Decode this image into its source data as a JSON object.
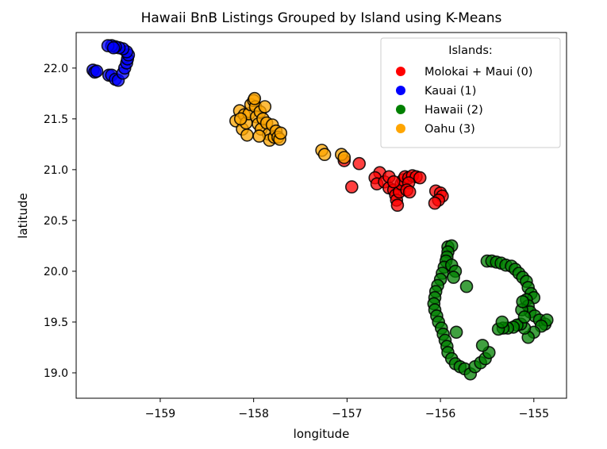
{
  "chart_data": {
    "type": "scatter",
    "title": "Hawaii BnB Listings Grouped by Island using K-Means",
    "xlabel": "longitude",
    "ylabel": "latitude",
    "xlim": [
      -159.9,
      -154.65
    ],
    "ylim": [
      18.75,
      22.35
    ],
    "xticks": [
      -159,
      -158,
      -157,
      -156,
      -155
    ],
    "xtick_labels": [
      "−159",
      "−158",
      "−157",
      "−156",
      "−155"
    ],
    "yticks": [
      19.0,
      19.5,
      20.0,
      20.5,
      21.0,
      21.5,
      22.0
    ],
    "ytick_labels": [
      "19.0",
      "19.5",
      "20.0",
      "20.5",
      "21.0",
      "21.5",
      "22.0"
    ],
    "grid": false,
    "legend": {
      "title": "Islands:",
      "placement": "top-right"
    },
    "series": [
      {
        "name": "Molokai + Maui (0)",
        "color": "#ff0000",
        "points": [
          [
            -157.03,
            21.09
          ],
          [
            -156.87,
            21.06
          ],
          [
            -156.95,
            20.83
          ],
          [
            -156.65,
            20.97
          ],
          [
            -156.7,
            20.92
          ],
          [
            -156.68,
            20.86
          ],
          [
            -156.6,
            20.88
          ],
          [
            -156.55,
            20.82
          ],
          [
            -156.5,
            20.8
          ],
          [
            -156.48,
            20.75
          ],
          [
            -156.47,
            20.7
          ],
          [
            -156.46,
            20.65
          ],
          [
            -156.44,
            20.78
          ],
          [
            -156.42,
            20.86
          ],
          [
            -156.4,
            20.9
          ],
          [
            -156.38,
            20.93
          ],
          [
            -156.34,
            20.92
          ],
          [
            -156.3,
            20.94
          ],
          [
            -156.26,
            20.93
          ],
          [
            -156.22,
            20.92
          ],
          [
            -156.34,
            20.87
          ],
          [
            -156.36,
            20.8
          ],
          [
            -156.33,
            20.78
          ],
          [
            -156.05,
            20.79
          ],
          [
            -156.0,
            20.77
          ],
          [
            -155.98,
            20.74
          ],
          [
            -156.02,
            20.7
          ],
          [
            -156.06,
            20.67
          ],
          [
            -156.55,
            20.93
          ],
          [
            -156.5,
            20.88
          ]
        ]
      },
      {
        "name": "Kauai (1)",
        "color": "#0000ff",
        "points": [
          [
            -159.72,
            21.98
          ],
          [
            -159.7,
            21.96
          ],
          [
            -159.68,
            21.97
          ],
          [
            -159.55,
            21.93
          ],
          [
            -159.52,
            21.93
          ],
          [
            -159.48,
            21.89
          ],
          [
            -159.45,
            21.88
          ],
          [
            -159.4,
            21.95
          ],
          [
            -159.38,
            22.0
          ],
          [
            -159.36,
            22.05
          ],
          [
            -159.35,
            22.09
          ],
          [
            -159.34,
            22.13
          ],
          [
            -159.36,
            22.16
          ],
          [
            -159.4,
            22.19
          ],
          [
            -159.44,
            22.2
          ],
          [
            -159.48,
            22.21
          ],
          [
            -159.52,
            22.22
          ],
          [
            -159.56,
            22.22
          ],
          [
            -159.5,
            22.2
          ]
        ]
      },
      {
        "name": "Hawaii (2)",
        "color": "#008000",
        "points": [
          [
            -155.92,
            20.24
          ],
          [
            -155.88,
            20.25
          ],
          [
            -155.92,
            20.19
          ],
          [
            -155.93,
            20.14
          ],
          [
            -155.94,
            20.1
          ],
          [
            -155.96,
            20.04
          ],
          [
            -155.98,
            19.98
          ],
          [
            -156.0,
            19.92
          ],
          [
            -156.03,
            19.86
          ],
          [
            -156.05,
            19.8
          ],
          [
            -156.06,
            19.74
          ],
          [
            -156.07,
            19.68
          ],
          [
            -156.06,
            19.62
          ],
          [
            -156.04,
            19.56
          ],
          [
            -156.02,
            19.5
          ],
          [
            -155.99,
            19.44
          ],
          [
            -155.97,
            19.38
          ],
          [
            -155.95,
            19.32
          ],
          [
            -155.93,
            19.26
          ],
          [
            -155.92,
            19.2
          ],
          [
            -155.88,
            19.14
          ],
          [
            -155.84,
            19.09
          ],
          [
            -155.79,
            19.06
          ],
          [
            -155.74,
            19.04
          ],
          [
            -155.68,
            18.99
          ],
          [
            -155.63,
            19.06
          ],
          [
            -155.57,
            19.1
          ],
          [
            -155.52,
            19.14
          ],
          [
            -155.48,
            19.2
          ],
          [
            -155.55,
            19.27
          ],
          [
            -155.88,
            20.06
          ],
          [
            -155.84,
            20.0
          ],
          [
            -155.86,
            19.94
          ],
          [
            -155.72,
            19.85
          ],
          [
            -155.83,
            19.4
          ],
          [
            -155.5,
            20.1
          ],
          [
            -155.45,
            20.1
          ],
          [
            -155.4,
            20.09
          ],
          [
            -155.35,
            20.08
          ],
          [
            -155.3,
            20.06
          ],
          [
            -155.24,
            20.05
          ],
          [
            -155.2,
            20.02
          ],
          [
            -155.16,
            19.98
          ],
          [
            -155.12,
            19.94
          ],
          [
            -155.08,
            19.9
          ],
          [
            -155.06,
            19.84
          ],
          [
            -155.03,
            19.78
          ],
          [
            -155.0,
            19.74
          ],
          [
            -155.08,
            19.72
          ],
          [
            -155.06,
            19.66
          ],
          [
            -155.04,
            19.6
          ],
          [
            -154.99,
            19.56
          ],
          [
            -154.94,
            19.52
          ],
          [
            -154.88,
            19.48
          ],
          [
            -154.86,
            19.52
          ],
          [
            -154.92,
            19.46
          ],
          [
            -155.0,
            19.4
          ],
          [
            -155.06,
            19.35
          ],
          [
            -155.1,
            19.44
          ],
          [
            -155.14,
            19.48
          ],
          [
            -155.18,
            19.47
          ],
          [
            -155.22,
            19.45
          ],
          [
            -155.28,
            19.44
          ],
          [
            -155.33,
            19.44
          ],
          [
            -155.38,
            19.43
          ],
          [
            -155.34,
            19.5
          ],
          [
            -155.13,
            19.62
          ],
          [
            -155.12,
            19.7
          ],
          [
            -155.1,
            19.55
          ]
        ]
      },
      {
        "name": "Oahu (3)",
        "color": "#ffa500",
        "points": [
          [
            -158.19,
            21.48
          ],
          [
            -158.15,
            21.58
          ],
          [
            -158.1,
            21.54
          ],
          [
            -158.12,
            21.4
          ],
          [
            -158.08,
            21.46
          ],
          [
            -158.07,
            21.34
          ],
          [
            -158.05,
            21.55
          ],
          [
            -158.03,
            21.64
          ],
          [
            -158.0,
            21.68
          ],
          [
            -157.98,
            21.62
          ],
          [
            -157.97,
            21.52
          ],
          [
            -157.95,
            21.45
          ],
          [
            -157.93,
            21.57
          ],
          [
            -157.92,
            21.4
          ],
          [
            -157.9,
            21.5
          ],
          [
            -157.88,
            21.62
          ],
          [
            -157.86,
            21.46
          ],
          [
            -157.84,
            21.35
          ],
          [
            -157.83,
            21.29
          ],
          [
            -157.8,
            21.44
          ],
          [
            -157.78,
            21.32
          ],
          [
            -157.76,
            21.38
          ],
          [
            -157.74,
            21.32
          ],
          [
            -157.72,
            21.3
          ],
          [
            -157.71,
            21.36
          ],
          [
            -157.99,
            21.7
          ],
          [
            -157.94,
            21.33
          ],
          [
            -158.14,
            21.5
          ],
          [
            -157.27,
            21.19
          ],
          [
            -157.24,
            21.15
          ],
          [
            -157.06,
            21.15
          ],
          [
            -157.03,
            21.12
          ]
        ]
      }
    ]
  }
}
